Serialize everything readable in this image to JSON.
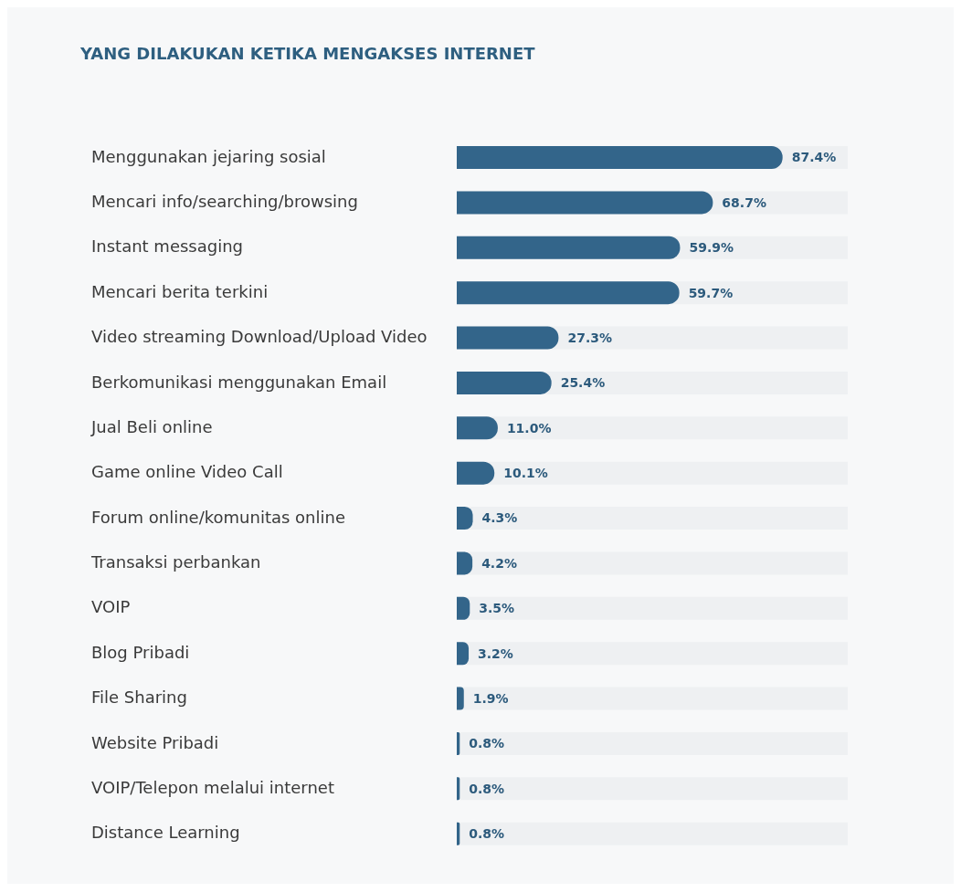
{
  "chart_data": {
    "type": "bar",
    "orientation": "horizontal",
    "title": "YANG DILAKUKAN KETIKA MENGAKSES INTERNET",
    "categories": [
      "Menggunakan jejaring sosial",
      "Mencari info/searching/browsing",
      "Instant messaging",
      "Mencari berita terkini",
      "Video streaming Download/Upload Video",
      "Berkomunikasi menggunakan Email",
      "Jual Beli online",
      "Game online Video Call",
      "Forum online/komunitas online",
      "Transaksi perbankan",
      "VOIP",
      "Blog Pribadi",
      "File Sharing",
      "Website Pribadi",
      "VOIP/Telepon melalui internet",
      "Distance Learning"
    ],
    "values": [
      87.4,
      68.7,
      59.9,
      59.7,
      27.3,
      25.4,
      11.0,
      10.1,
      4.3,
      4.2,
      3.5,
      3.2,
      1.9,
      0.8,
      0.8,
      0.8
    ],
    "value_labels": [
      "87.4%",
      "68.7%",
      "59.9%",
      "59.7%",
      "27.3%",
      "25.4%",
      "11.0%",
      "10.1%",
      "4.3%",
      "4.2%",
      "3.5%",
      "3.2%",
      "1.9%",
      "0.8%",
      "0.8%",
      "0.8%"
    ],
    "color": "#33658a"
  }
}
